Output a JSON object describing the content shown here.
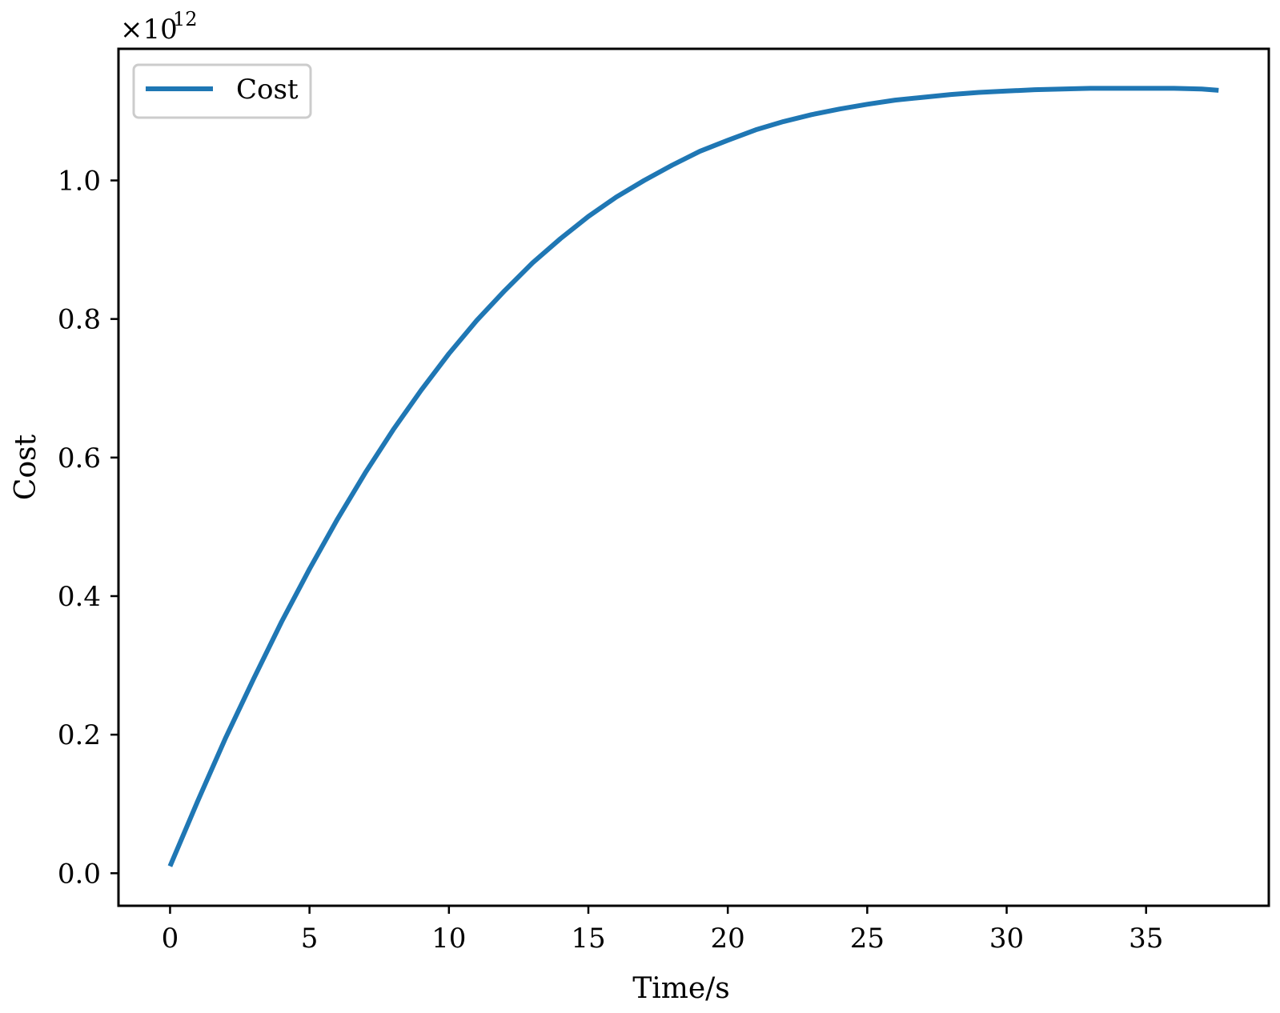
{
  "chart_data": {
    "type": "line",
    "title": "",
    "xlabel": "Time/s",
    "ylabel": "Cost",
    "xlim": [
      -1.85,
      39.4
    ],
    "ylim": [
      -0.047,
      1.19
    ],
    "xticks": [
      0,
      5,
      10,
      15,
      20,
      25,
      30,
      35
    ],
    "xtick_labels": [
      "0",
      "5",
      "10",
      "15",
      "20",
      "25",
      "30",
      "35"
    ],
    "yticks": [
      0.0,
      0.2,
      0.4,
      0.6,
      0.8,
      1.0
    ],
    "ytick_labels": [
      "0.0",
      "0.2",
      "0.4",
      "0.6",
      "0.8",
      "1.0"
    ],
    "y_multiplier": {
      "base": "×10",
      "exponent": "12"
    },
    "grid": false,
    "legend": {
      "position": "upper-left",
      "entries": [
        "Cost"
      ]
    },
    "colors": {
      "series": "#1f77b4",
      "axes": "#000000",
      "legend_border": "#cccccc"
    },
    "series": [
      {
        "name": "Cost",
        "x": [
          0,
          1,
          2,
          3,
          4,
          5,
          6,
          7,
          8,
          9,
          10,
          11,
          12,
          13,
          14,
          15,
          16,
          17,
          18,
          19,
          20,
          21,
          22,
          23,
          24,
          25,
          26,
          27,
          28,
          29,
          30,
          31,
          32,
          33,
          34,
          35,
          36,
          37,
          37.6
        ],
        "y": [
          0.01,
          0.105,
          0.196,
          0.281,
          0.363,
          0.439,
          0.511,
          0.578,
          0.64,
          0.697,
          0.75,
          0.798,
          0.841,
          0.881,
          0.916,
          0.948,
          0.976,
          1.0,
          1.022,
          1.042,
          1.058,
          1.073,
          1.085,
          1.095,
          1.103,
          1.11,
          1.116,
          1.12,
          1.124,
          1.127,
          1.129,
          1.131,
          1.132,
          1.133,
          1.133,
          1.133,
          1.133,
          1.132,
          1.13
        ]
      }
    ]
  }
}
